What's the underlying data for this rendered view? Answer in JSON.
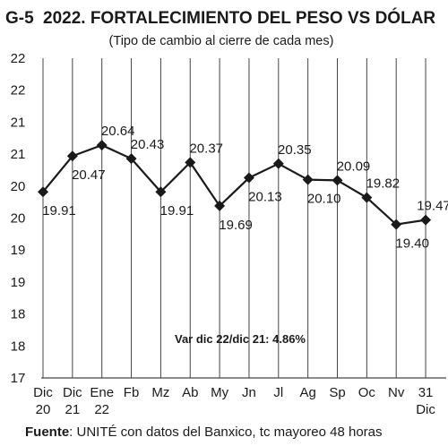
{
  "chart_data": {
    "type": "line",
    "title_code": "G-5",
    "title": "2022. FORTALECIMIENTO DEL PESO VS DÓLAR",
    "subtitle": "(Tipo de cambio al cierre de cada mes)",
    "categories": [
      [
        "Dic",
        "20"
      ],
      [
        "Dic",
        "21"
      ],
      [
        "Ene",
        "22"
      ],
      [
        "Fb"
      ],
      [
        "Mz"
      ],
      [
        "Ab"
      ],
      [
        "My"
      ],
      [
        "Jn"
      ],
      [
        "Jl"
      ],
      [
        "Ag"
      ],
      [
        "Sp"
      ],
      [
        "Oc"
      ],
      [
        "Nv"
      ],
      [
        "31",
        "Dic"
      ]
    ],
    "values": [
      19.91,
      20.47,
      20.64,
      20.43,
      19.91,
      20.37,
      19.69,
      20.13,
      20.35,
      20.1,
      20.09,
      19.82,
      19.4,
      19.47
    ],
    "labels": [
      "19.91",
      "20.47",
      "20.64",
      "20.43",
      "19.91",
      "20.37",
      "19.69",
      "20.13",
      "20.35",
      "20.10",
      "20.09",
      "19.82",
      "19.40",
      "19.47"
    ],
    "label_pos": [
      "below",
      "below",
      "above",
      "above",
      "below",
      "above",
      "below",
      "below",
      "above",
      "below",
      "above",
      "above",
      "below",
      "above"
    ],
    "y_ticks": [
      "17",
      "18",
      "18",
      "19",
      "19",
      "20",
      "20",
      "21",
      "21",
      "22",
      "22"
    ],
    "ylim": [
      17,
      22
    ],
    "grid": "vertical",
    "annotation": "Var dic 22/dic 21: 4.86%",
    "color": "#1a1a1a"
  },
  "source": {
    "label": "Fuente",
    "text": ": UNITÉ con datos del Banxico, tc mayoreo 48 horas"
  }
}
